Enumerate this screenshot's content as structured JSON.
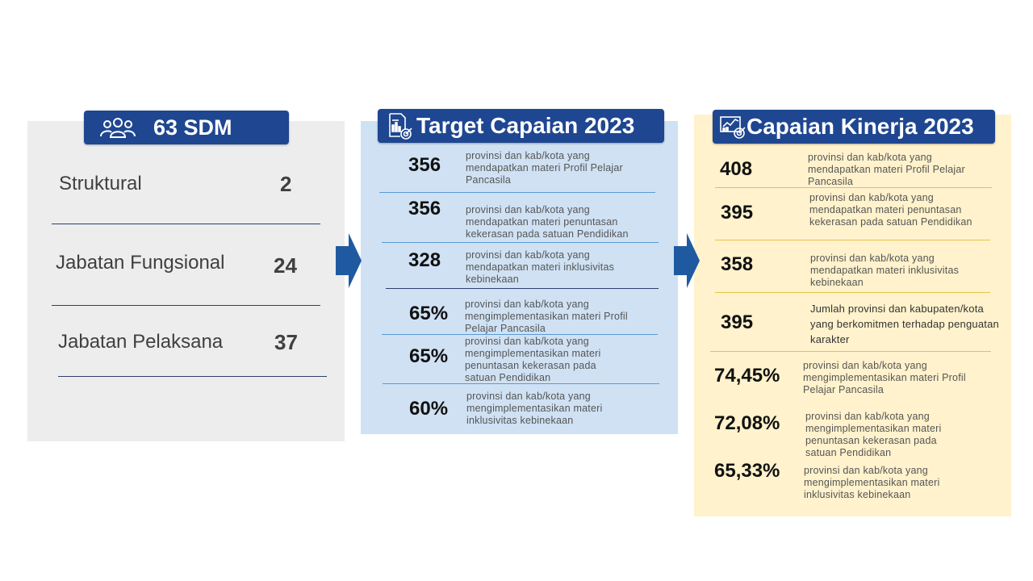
{
  "sdm": {
    "title": "63 SDM",
    "icon": "people-group-icon",
    "rows": [
      {
        "label": "Struktural",
        "value": "2"
      },
      {
        "label": "Jabatan Fungsional",
        "value": "24"
      },
      {
        "label": "Jabatan Pelaksana",
        "value": "37"
      }
    ]
  },
  "target": {
    "title": "Target Capaian 2023",
    "icon": "report-target-icon",
    "items": [
      {
        "value": "356",
        "desc": "provinsi dan kab/kota yang mendapatkan materi Profil Pelajar Pancasila"
      },
      {
        "value": "356",
        "desc": "provinsi dan kab/kota yang mendapatkan materi penuntasan kekerasan pada satuan Pendidikan"
      },
      {
        "value": "328",
        "desc": "provinsi dan kab/kota yang mendapatkan materi inklusivitas kebinekaan"
      },
      {
        "value": "65%",
        "desc": "provinsi dan kab/kota yang mengimplementasikan materi Profil Pelajar Pancasila"
      },
      {
        "value": "65%",
        "desc": "provinsi dan kab/kota yang mengimplementasikan materi penuntasan kekerasan pada satuan Pendidikan"
      },
      {
        "value": "60%",
        "desc": "provinsi dan kab/kota yang mengimplementasikan materi inklusivitas kebinekaan"
      }
    ]
  },
  "capaian": {
    "title": "Capaian Kinerja 2023",
    "icon": "chart-target-icon",
    "items": [
      {
        "value": "408",
        "desc": "provinsi dan kab/kota yang mendapatkan materi Profil Pelajar Pancasila"
      },
      {
        "value": "395",
        "desc": "provinsi dan kab/kota yang mendapatkan materi penuntasan kekerasan pada satuan Pendidikan"
      },
      {
        "value": "358",
        "desc": "provinsi dan kab/kota yang mendapatkan materi inklusivitas kebinekaan"
      },
      {
        "value": "395",
        "desc": "Jumlah provinsi dan kabupaten/kota yang berkomitmen terhadap penguatan karakter"
      },
      {
        "value": "74,45%",
        "desc": "provinsi dan kab/kota yang mengimplementasikan materi Profil Pelajar Pancasila"
      },
      {
        "value": "72,08%",
        "desc": "provinsi dan kab/kota yang mengimplementasikan materi penuntasan kekerasan pada satuan Pendidikan"
      },
      {
        "value": "65,33%",
        "desc": "provinsi dan kab/kota yang mengimplementasikan materi inklusivitas kebinekaan"
      }
    ]
  },
  "colors": {
    "header_bg": "#1f4690",
    "arrow": "#1f5aa0",
    "sdm_bg": "#ededed",
    "target_bg": "#cfe1f3",
    "capaian_bg": "#fff2cc"
  }
}
